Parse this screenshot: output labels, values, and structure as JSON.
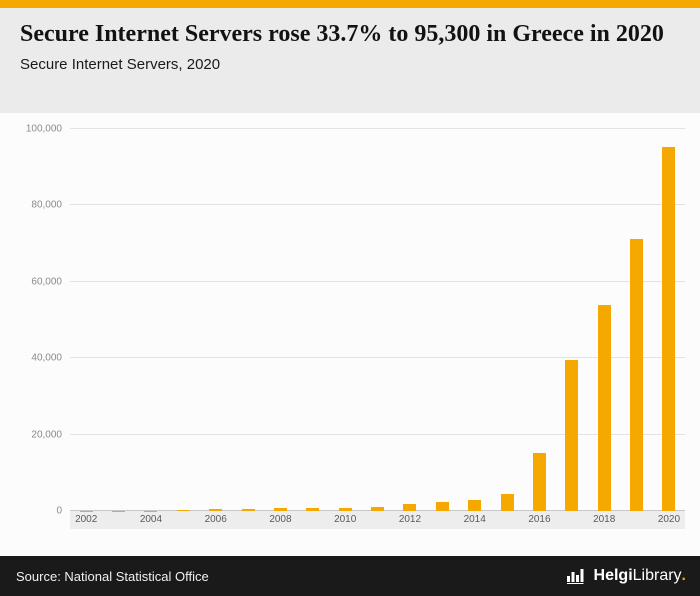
{
  "brand": {
    "accent": "#f5a800",
    "header_bg": "#ebebeb",
    "footer_bg": "#1a1a1a"
  },
  "header": {
    "title": "Secure Internet Servers rose 33.7% to 95,300 in Greece in 2020",
    "subtitle": "Secure Internet Servers, 2020"
  },
  "chart_data": {
    "type": "bar",
    "title": "Secure Internet Servers, 2020",
    "xlabel": "",
    "ylabel": "",
    "bar_color": "#f5a800",
    "grid": true,
    "legend": "none",
    "ylim": [
      0,
      100000
    ],
    "ytick_labels": [
      "0",
      "20,000",
      "40,000",
      "60,000",
      "80,000",
      "100,000"
    ],
    "categories": [
      2002,
      2003,
      2004,
      2005,
      2006,
      2007,
      2008,
      2009,
      2010,
      2011,
      2012,
      2013,
      2014,
      2015,
      2016,
      2017,
      2018,
      2019,
      2020
    ],
    "values": [
      60,
      90,
      120,
      170,
      420,
      480,
      780,
      850,
      800,
      1050,
      1900,
      2400,
      3000,
      4500,
      15200,
      39600,
      54000,
      71300,
      95300
    ],
    "xtick_labels": [
      "2002",
      "2004",
      "2006",
      "2008",
      "2010",
      "2012",
      "2014",
      "2016",
      "2018",
      "2020"
    ],
    "highlight_note": "2020 value 95,300, +33.7% vs 2019"
  },
  "footer": {
    "source": "Source: National Statistical Office",
    "logo": {
      "bold": "Helgi",
      "regular": "Library",
      "dot": "."
    }
  }
}
